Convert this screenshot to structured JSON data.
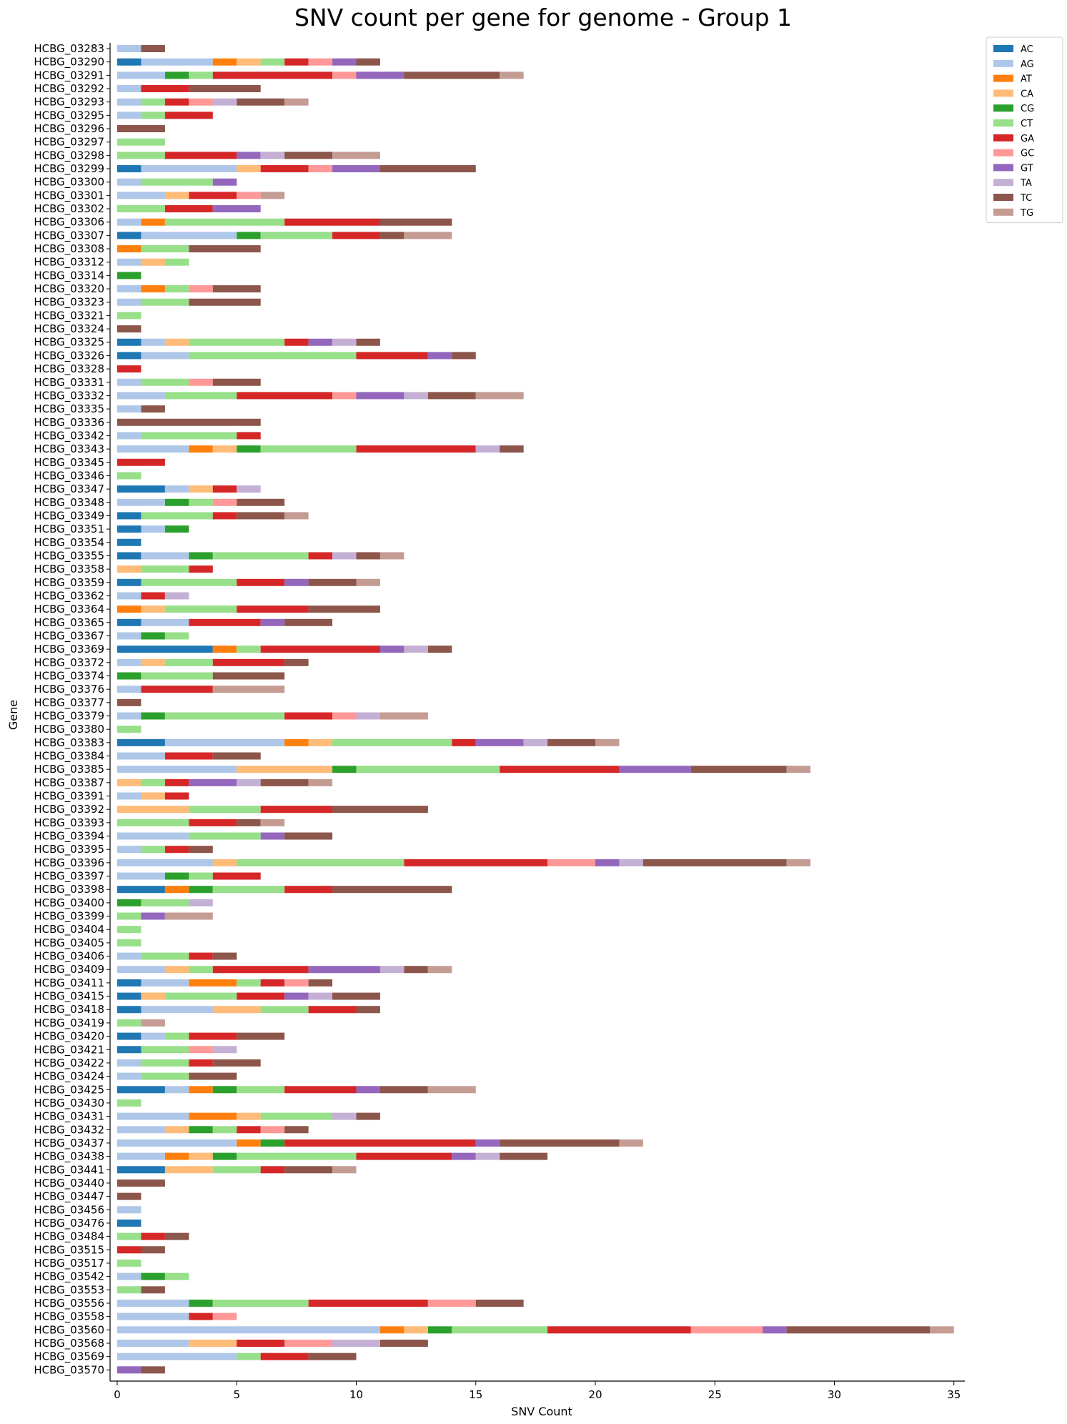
{
  "chart_data": {
    "type": "bar",
    "orientation": "horizontal",
    "stacked": true,
    "title": "SNV count per gene for genome - Group 1",
    "xlabel": "SNV Count",
    "ylabel": "Gene",
    "xlim": [
      0,
      35
    ],
    "xticks": [
      0,
      5,
      10,
      15,
      20,
      25,
      30,
      35
    ],
    "grid": false,
    "legend_position": "top-right",
    "colors": {
      "AC": "#1f77b4",
      "AG": "#aec7e8",
      "AT": "#ff7f0e",
      "CA": "#ffbb78",
      "CG": "#2ca02c",
      "CT": "#98df8a",
      "GA": "#d62728",
      "GC": "#ff9896",
      "GT": "#9467bd",
      "TA": "#c5b0d5",
      "TC": "#8c564b",
      "TG": "#c49c94"
    },
    "categories": [
      "HCBG_03283",
      "HCBG_03290",
      "HCBG_03291",
      "HCBG_03292",
      "HCBG_03293",
      "HCBG_03295",
      "HCBG_03296",
      "HCBG_03297",
      "HCBG_03298",
      "HCBG_03299",
      "HCBG_03300",
      "HCBG_03301",
      "HCBG_03302",
      "HCBG_03306",
      "HCBG_03307",
      "HCBG_03308",
      "HCBG_03312",
      "HCBG_03314",
      "HCBG_03320",
      "HCBG_03323",
      "HCBG_03321",
      "HCBG_03324",
      "HCBG_03325",
      "HCBG_03326",
      "HCBG_03328",
      "HCBG_03331",
      "HCBG_03332",
      "HCBG_03335",
      "HCBG_03336",
      "HCBG_03342",
      "HCBG_03343",
      "HCBG_03345",
      "HCBG_03346",
      "HCBG_03347",
      "HCBG_03348",
      "HCBG_03349",
      "HCBG_03351",
      "HCBG_03354",
      "HCBG_03355",
      "HCBG_03358",
      "HCBG_03359",
      "HCBG_03362",
      "HCBG_03364",
      "HCBG_03365",
      "HCBG_03367",
      "HCBG_03369",
      "HCBG_03372",
      "HCBG_03374",
      "HCBG_03376",
      "HCBG_03377",
      "HCBG_03379",
      "HCBG_03380",
      "HCBG_03383",
      "HCBG_03384",
      "HCBG_03385",
      "HCBG_03387",
      "HCBG_03391",
      "HCBG_03392",
      "HCBG_03393",
      "HCBG_03394",
      "HCBG_03395",
      "HCBG_03396",
      "HCBG_03397",
      "HCBG_03398",
      "HCBG_03400",
      "HCBG_03399",
      "HCBG_03404",
      "HCBG_03405",
      "HCBG_03406",
      "HCBG_03409",
      "HCBG_03411",
      "HCBG_03415",
      "HCBG_03418",
      "HCBG_03419",
      "HCBG_03420",
      "HCBG_03421",
      "HCBG_03422",
      "HCBG_03424",
      "HCBG_03425",
      "HCBG_03430",
      "HCBG_03431",
      "HCBG_03432",
      "HCBG_03437",
      "HCBG_03438",
      "HCBG_03441",
      "HCBG_03440",
      "HCBG_03447",
      "HCBG_03456",
      "HCBG_03476",
      "HCBG_03484",
      "HCBG_03515",
      "HCBG_03517",
      "HCBG_03542",
      "HCBG_03553",
      "HCBG_03556",
      "HCBG_03558",
      "HCBG_03560",
      "HCBG_03568",
      "HCBG_03569",
      "HCBG_03570"
    ],
    "series": [
      {
        "name": "AC",
        "values": [
          0,
          1,
          0,
          0,
          0,
          0,
          0,
          0,
          0,
          1,
          0,
          0,
          0,
          0,
          1,
          0,
          0,
          0,
          0,
          0,
          0,
          0,
          1,
          1,
          0,
          0,
          0,
          0,
          0,
          0,
          0,
          0,
          0,
          2,
          0,
          1,
          1,
          1,
          1,
          0,
          1,
          0,
          0,
          1,
          0,
          4,
          0,
          0,
          0,
          0,
          0,
          0,
          2,
          0,
          0,
          0,
          0,
          0,
          0,
          0,
          0,
          0,
          0,
          2,
          0,
          0,
          0,
          0,
          0,
          0,
          1,
          1,
          1,
          0,
          1,
          1,
          0,
          0,
          2,
          0,
          0,
          0,
          0,
          0,
          2,
          0,
          0,
          0,
          1,
          0,
          0,
          0,
          0,
          0,
          0,
          0,
          0,
          0,
          0,
          0
        ]
      },
      {
        "name": "AG",
        "values": [
          1,
          3,
          2,
          1,
          1,
          1,
          0,
          0,
          0,
          4,
          1,
          2,
          0,
          1,
          4,
          0,
          1,
          0,
          1,
          1,
          0,
          0,
          1,
          2,
          0,
          1,
          2,
          1,
          0,
          1,
          3,
          0,
          0,
          1,
          2,
          0,
          1,
          0,
          2,
          0,
          0,
          1,
          0,
          2,
          1,
          0,
          1,
          0,
          1,
          0,
          1,
          0,
          5,
          2,
          5,
          0,
          1,
          0,
          0,
          3,
          1,
          4,
          2,
          0,
          0,
          0,
          0,
          0,
          1,
          2,
          2,
          0,
          3,
          0,
          1,
          0,
          1,
          1,
          1,
          0,
          3,
          2,
          5,
          2,
          0,
          0,
          0,
          1,
          0,
          0,
          0,
          0,
          1,
          0,
          3,
          3,
          11,
          3,
          5,
          0
        ]
      },
      {
        "name": "AT",
        "values": [
          0,
          1,
          0,
          0,
          0,
          0,
          0,
          0,
          0,
          0,
          0,
          0,
          0,
          1,
          0,
          1,
          0,
          0,
          1,
          0,
          0,
          0,
          0,
          0,
          0,
          0,
          0,
          0,
          0,
          0,
          1,
          0,
          0,
          0,
          0,
          0,
          0,
          0,
          0,
          0,
          0,
          0,
          1,
          0,
          0,
          1,
          0,
          0,
          0,
          0,
          0,
          0,
          1,
          0,
          0,
          0,
          0,
          0,
          0,
          0,
          0,
          0,
          0,
          1,
          0,
          0,
          0,
          0,
          0,
          0,
          2,
          0,
          0,
          0,
          0,
          0,
          0,
          0,
          1,
          0,
          2,
          0,
          1,
          1,
          0,
          0,
          0,
          0,
          0,
          0,
          0,
          0,
          0,
          0,
          0,
          0,
          1,
          0,
          0,
          0
        ]
      },
      {
        "name": "CA",
        "values": [
          0,
          1,
          0,
          0,
          0,
          0,
          0,
          0,
          0,
          1,
          0,
          1,
          0,
          0,
          0,
          0,
          1,
          0,
          0,
          0,
          0,
          0,
          1,
          0,
          0,
          0,
          0,
          0,
          0,
          0,
          1,
          0,
          0,
          1,
          0,
          0,
          0,
          0,
          0,
          1,
          0,
          0,
          1,
          0,
          0,
          0,
          1,
          0,
          0,
          0,
          0,
          0,
          1,
          0,
          4,
          1,
          1,
          3,
          0,
          0,
          0,
          1,
          0,
          0,
          0,
          0,
          0,
          0,
          0,
          1,
          0,
          1,
          2,
          0,
          0,
          0,
          0,
          0,
          0,
          0,
          1,
          1,
          0,
          1,
          2,
          0,
          0,
          0,
          0,
          0,
          0,
          0,
          0,
          0,
          0,
          0,
          1,
          2,
          0,
          0
        ]
      },
      {
        "name": "CG",
        "values": [
          0,
          0,
          1,
          0,
          0,
          0,
          0,
          0,
          0,
          0,
          0,
          0,
          0,
          0,
          1,
          0,
          0,
          1,
          0,
          0,
          0,
          0,
          0,
          0,
          0,
          0,
          0,
          0,
          0,
          0,
          1,
          0,
          0,
          0,
          1,
          0,
          1,
          0,
          1,
          0,
          0,
          0,
          0,
          0,
          1,
          0,
          0,
          1,
          0,
          0,
          1,
          0,
          0,
          0,
          1,
          0,
          0,
          0,
          0,
          0,
          0,
          0,
          1,
          1,
          1,
          0,
          0,
          0,
          0,
          0,
          0,
          0,
          0,
          0,
          0,
          0,
          0,
          0,
          1,
          0,
          0,
          1,
          1,
          1,
          0,
          0,
          0,
          0,
          0,
          0,
          0,
          0,
          1,
          0,
          1,
          0,
          1,
          0,
          0,
          0
        ]
      },
      {
        "name": "CT",
        "values": [
          0,
          1,
          1,
          0,
          1,
          1,
          0,
          2,
          2,
          0,
          3,
          0,
          2,
          5,
          3,
          2,
          1,
          0,
          1,
          2,
          1,
          0,
          4,
          7,
          0,
          2,
          3,
          0,
          0,
          4,
          4,
          0,
          1,
          0,
          1,
          3,
          0,
          0,
          4,
          2,
          4,
          0,
          3,
          0,
          1,
          1,
          2,
          3,
          0,
          0,
          5,
          1,
          5,
          0,
          6,
          1,
          0,
          3,
          3,
          3,
          1,
          7,
          1,
          3,
          2,
          1,
          1,
          1,
          2,
          1,
          1,
          3,
          2,
          1,
          1,
          2,
          2,
          2,
          2,
          1,
          3,
          1,
          0,
          5,
          2,
          0,
          0,
          0,
          0,
          1,
          0,
          1,
          1,
          1,
          4,
          0,
          4,
          0,
          1,
          0
        ]
      },
      {
        "name": "GA",
        "values": [
          0,
          1,
          5,
          2,
          1,
          2,
          0,
          0,
          3,
          2,
          0,
          2,
          2,
          4,
          2,
          0,
          0,
          0,
          0,
          0,
          0,
          0,
          1,
          3,
          1,
          0,
          4,
          0,
          0,
          1,
          5,
          2,
          0,
          1,
          0,
          1,
          0,
          0,
          1,
          1,
          2,
          1,
          3,
          3,
          0,
          5,
          3,
          0,
          3,
          0,
          2,
          0,
          1,
          2,
          5,
          1,
          1,
          3,
          2,
          0,
          1,
          6,
          2,
          2,
          0,
          0,
          0,
          0,
          1,
          4,
          1,
          2,
          2,
          0,
          2,
          0,
          1,
          0,
          3,
          0,
          0,
          1,
          8,
          4,
          1,
          0,
          0,
          0,
          0,
          1,
          1,
          0,
          0,
          0,
          5,
          1,
          6,
          2,
          2,
          0
        ]
      },
      {
        "name": "GC",
        "values": [
          0,
          1,
          1,
          0,
          1,
          0,
          0,
          0,
          0,
          1,
          0,
          1,
          0,
          0,
          0,
          0,
          0,
          0,
          1,
          0,
          0,
          0,
          0,
          0,
          0,
          1,
          1,
          0,
          0,
          0,
          0,
          0,
          0,
          0,
          1,
          0,
          0,
          0,
          0,
          0,
          0,
          0,
          0,
          0,
          0,
          0,
          0,
          0,
          0,
          0,
          1,
          0,
          0,
          0,
          0,
          0,
          0,
          0,
          0,
          0,
          0,
          2,
          0,
          0,
          0,
          0,
          0,
          0,
          0,
          0,
          1,
          0,
          0,
          0,
          0,
          1,
          0,
          0,
          0,
          0,
          0,
          1,
          0,
          0,
          0,
          0,
          0,
          0,
          0,
          0,
          0,
          0,
          0,
          0,
          2,
          1,
          3,
          2,
          0,
          0
        ]
      },
      {
        "name": "GT",
        "values": [
          0,
          1,
          2,
          0,
          0,
          0,
          0,
          0,
          1,
          2,
          1,
          0,
          2,
          0,
          0,
          0,
          0,
          0,
          0,
          0,
          0,
          0,
          1,
          1,
          0,
          0,
          2,
          0,
          0,
          0,
          0,
          0,
          0,
          0,
          0,
          0,
          0,
          0,
          0,
          0,
          1,
          0,
          0,
          1,
          0,
          1,
          0,
          0,
          0,
          0,
          0,
          0,
          2,
          0,
          3,
          2,
          0,
          0,
          0,
          1,
          0,
          1,
          0,
          0,
          0,
          1,
          0,
          0,
          0,
          3,
          0,
          1,
          0,
          0,
          0,
          0,
          0,
          0,
          1,
          0,
          0,
          0,
          1,
          1,
          0,
          0,
          0,
          0,
          0,
          0,
          0,
          0,
          0,
          0,
          0,
          0,
          1,
          0,
          0,
          1
        ]
      },
      {
        "name": "TA",
        "values": [
          0,
          0,
          0,
          0,
          1,
          0,
          0,
          0,
          1,
          0,
          0,
          0,
          0,
          0,
          0,
          0,
          0,
          0,
          0,
          0,
          0,
          0,
          1,
          0,
          0,
          0,
          1,
          0,
          0,
          0,
          1,
          0,
          0,
          1,
          0,
          0,
          0,
          0,
          1,
          0,
          0,
          1,
          0,
          0,
          0,
          1,
          0,
          0,
          0,
          0,
          1,
          0,
          1,
          0,
          0,
          1,
          0,
          0,
          0,
          0,
          0,
          1,
          0,
          0,
          1,
          0,
          0,
          0,
          0,
          1,
          0,
          1,
          0,
          0,
          0,
          1,
          0,
          0,
          0,
          0,
          1,
          0,
          0,
          1,
          0,
          0,
          0,
          0,
          0,
          0,
          0,
          0,
          0,
          0,
          0,
          0,
          0,
          2,
          0,
          0
        ]
      },
      {
        "name": "TC",
        "values": [
          1,
          1,
          4,
          3,
          2,
          0,
          2,
          0,
          2,
          4,
          0,
          0,
          0,
          3,
          1,
          3,
          0,
          0,
          2,
          3,
          0,
          1,
          1,
          1,
          0,
          2,
          2,
          1,
          6,
          0,
          1,
          0,
          0,
          0,
          2,
          2,
          0,
          0,
          1,
          0,
          2,
          0,
          3,
          2,
          0,
          1,
          1,
          3,
          0,
          1,
          0,
          0,
          2,
          2,
          4,
          2,
          0,
          4,
          1,
          2,
          1,
          6,
          0,
          5,
          0,
          0,
          0,
          0,
          1,
          1,
          1,
          2,
          1,
          0,
          2,
          0,
          2,
          2,
          2,
          0,
          1,
          1,
          5,
          2,
          2,
          2,
          1,
          0,
          0,
          1,
          1,
          0,
          0,
          1,
          2,
          0,
          6,
          2,
          2,
          1
        ]
      },
      {
        "name": "TG",
        "values": [
          0,
          0,
          1,
          0,
          1,
          0,
          0,
          0,
          2,
          0,
          0,
          1,
          0,
          0,
          2,
          0,
          0,
          0,
          0,
          0,
          0,
          0,
          0,
          0,
          0,
          0,
          2,
          0,
          0,
          0,
          0,
          0,
          0,
          0,
          0,
          1,
          0,
          0,
          1,
          0,
          1,
          0,
          0,
          0,
          0,
          0,
          0,
          0,
          3,
          0,
          2,
          0,
          1,
          0,
          1,
          1,
          0,
          0,
          1,
          0,
          0,
          1,
          0,
          0,
          0,
          2,
          0,
          0,
          0,
          1,
          0,
          0,
          0,
          1,
          0,
          0,
          0,
          0,
          2,
          0,
          0,
          0,
          1,
          0,
          1,
          0,
          0,
          0,
          0,
          0,
          0,
          0,
          0,
          0,
          0,
          0,
          1,
          0,
          0,
          0
        ]
      }
    ]
  }
}
